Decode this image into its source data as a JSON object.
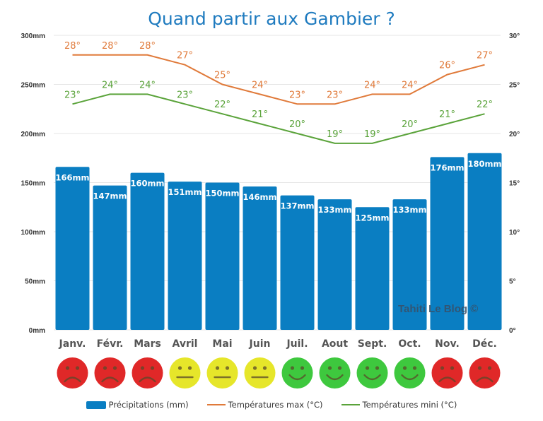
{
  "title": "Quand partir aux Gambier ?",
  "watermark": "Tahiti Le Blog ©",
  "colors": {
    "bars": "#0a7ec2",
    "tmax": "#e07a3a",
    "tmin": "#5aa33a",
    "title": "#1f7bbf",
    "bad": "#e02828",
    "ok": "#e6e62a",
    "good": "#3ec83e"
  },
  "legend": [
    {
      "label": "Précipitations (mm)",
      "kind": "bar"
    },
    {
      "label": "Températures max (°C)",
      "kind": "tmax"
    },
    {
      "label": "Températures mini (°C)",
      "kind": "tmin"
    }
  ],
  "chart_data": {
    "type": "bar",
    "title": "Quand partir aux Gambier ?",
    "categories": [
      "Janv.",
      "Févr.",
      "Mars",
      "Avril",
      "Mai",
      "Juin",
      "Juil.",
      "Aout",
      "Sept.",
      "Oct.",
      "Nov.",
      "Déc."
    ],
    "series": [
      {
        "name": "Précipitations (mm)",
        "type": "bar",
        "axis": "left",
        "values": [
          166,
          147,
          160,
          151,
          150,
          146,
          137,
          133,
          125,
          133,
          176,
          180
        ],
        "labels": [
          "166mm",
          "147mm",
          "160mm",
          "151mm",
          "150mm",
          "146mm",
          "137mm",
          "133mm",
          "125mm",
          "133mm",
          "176mm",
          "180mm"
        ]
      },
      {
        "name": "Températures max (°C)",
        "type": "line",
        "axis": "right",
        "values": [
          28,
          28,
          28,
          27,
          25,
          24,
          23,
          23,
          24,
          24,
          26,
          27
        ]
      },
      {
        "name": "Températures mini (°C)",
        "type": "line",
        "axis": "right",
        "values": [
          23,
          24,
          24,
          23,
          22,
          21,
          20,
          19,
          19,
          20,
          21,
          22
        ]
      }
    ],
    "y_left": {
      "range": [
        0,
        300
      ],
      "ticks": [
        0,
        50,
        100,
        150,
        200,
        250,
        300
      ],
      "tick_labels": [
        "0mm",
        "50mm",
        "100mm",
        "150mm",
        "200mm",
        "250mm",
        "300mm"
      ]
    },
    "y_right": {
      "range": [
        0,
        30
      ],
      "ticks": [
        0,
        5,
        10,
        15,
        20,
        25,
        30
      ],
      "tick_labels": [
        "0°",
        "5°",
        "10°",
        "15°",
        "20°",
        "25°",
        "30°"
      ]
    },
    "grid": true,
    "legend_position": "bottom",
    "ratings": [
      "bad",
      "bad",
      "bad",
      "ok",
      "ok",
      "ok",
      "good",
      "good",
      "good",
      "good",
      "bad",
      "bad"
    ]
  }
}
